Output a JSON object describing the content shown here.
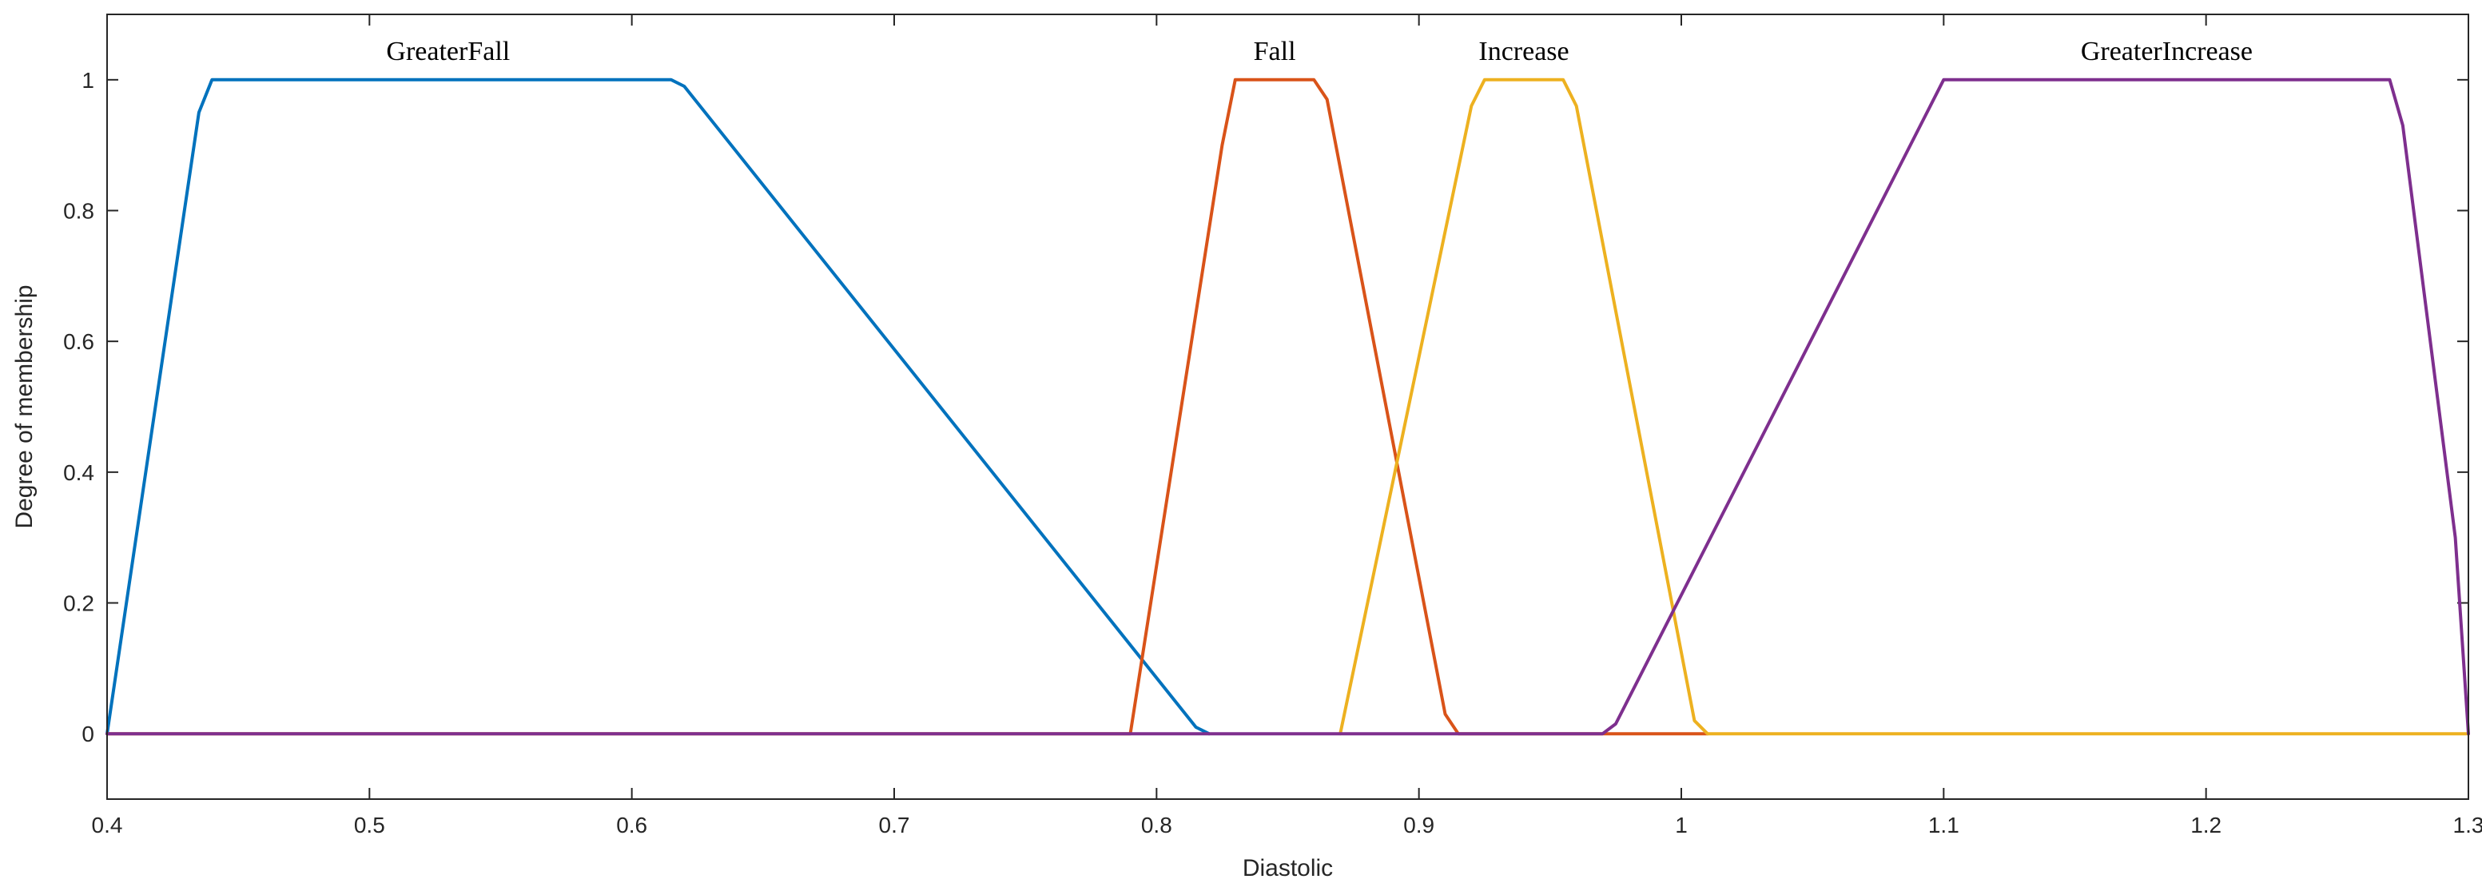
{
  "chart_data": {
    "type": "line",
    "title": "",
    "xlabel": "Diastolic",
    "ylabel": "Degree of membership",
    "xlim": [
      0.4,
      1.3
    ],
    "ylim": [
      -0.1,
      1.1
    ],
    "x_ticks": [
      0.4,
      0.5,
      0.6,
      0.7,
      0.8,
      0.9,
      1.0,
      1.1,
      1.2,
      1.3
    ],
    "x_tick_labels": [
      "0.4",
      "0.5",
      "0.6",
      "0.7",
      "0.8",
      "0.9",
      "1",
      "1.1",
      "1.2",
      "1.3"
    ],
    "y_ticks": [
      0,
      0.2,
      0.4,
      0.6,
      0.8,
      1
    ],
    "y_tick_labels": [
      "0",
      "0.2",
      "0.4",
      "0.6",
      "0.8",
      "1"
    ],
    "grid": false,
    "legend": "none",
    "series": [
      {
        "name": "GreaterFall",
        "color": "#0072BD",
        "x": [
          0.4,
          0.435,
          0.44,
          0.615,
          0.62,
          0.815,
          0.82
        ],
        "y": [
          0,
          0.95,
          1,
          1,
          0.99,
          0.01,
          0
        ]
      },
      {
        "name": "Fall",
        "color": "#D95319",
        "x": [
          0.4,
          0.79,
          0.825,
          0.83,
          0.86,
          0.865,
          0.91,
          0.915,
          1.01
        ],
        "y": [
          0,
          0,
          0.9,
          1,
          1,
          0.97,
          0.03,
          0,
          0
        ]
      },
      {
        "name": "Increase",
        "color": "#EDB120",
        "x": [
          0.87,
          0.92,
          0.925,
          0.955,
          0.96,
          1.005,
          1.01,
          1.3
        ],
        "y": [
          0,
          0.96,
          1,
          1,
          0.96,
          0.02,
          0,
          0
        ]
      },
      {
        "name": "GreaterIncrease",
        "color": "#7E2F8E",
        "x": [
          0.4,
          0.97,
          0.975,
          1.1,
          1.27,
          1.275,
          1.295,
          1.3
        ],
        "y": [
          0,
          0,
          0.015,
          1,
          1,
          0.93,
          0.3,
          0
        ]
      }
    ],
    "annotations": [
      {
        "text": "GreaterFall",
        "x": 0.53,
        "y": 1.045
      },
      {
        "text": "Fall",
        "x": 0.845,
        "y": 1.045
      },
      {
        "text": "Increase",
        "x": 0.94,
        "y": 1.045
      },
      {
        "text": "GreaterIncrease",
        "x": 1.185,
        "y": 1.045
      }
    ]
  }
}
